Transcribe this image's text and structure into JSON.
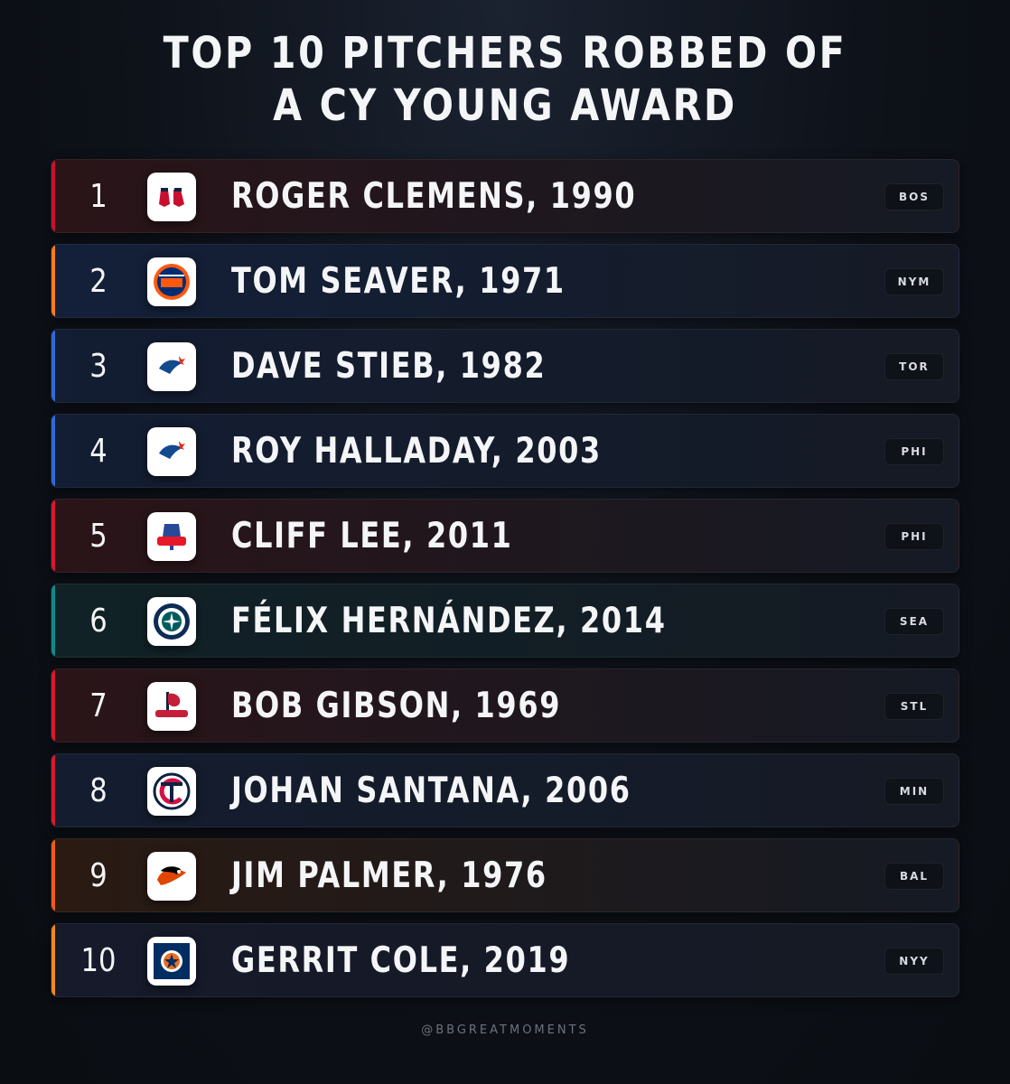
{
  "title": {
    "line1": "TOP 10 PITCHERS ROBBED OF",
    "line2": "A CY YOUNG AWARD"
  },
  "rows": [
    {
      "rank": "1",
      "name": "ROGER CLEMENS, 1990",
      "team": "BOS",
      "logo": "red-sox-logo",
      "accent": "#c8102e",
      "bg": "#2a1418"
    },
    {
      "rank": "2",
      "name": "TOM SEAVER, 1971",
      "team": "NYM",
      "logo": "mets-logo",
      "accent": "#ff7a1a",
      "bg": "#14203a"
    },
    {
      "rank": "3",
      "name": "DAVE STIEB, 1982",
      "team": "TOR",
      "logo": "blue-jays-logo",
      "accent": "#2f6bd6",
      "bg": "#131d33"
    },
    {
      "rank": "4",
      "name": "ROY HALLADAY, 2003",
      "team": "PHI",
      "logo": "blue-jays-logo",
      "accent": "#2f6bd6",
      "bg": "#131d33"
    },
    {
      "rank": "5",
      "name": "CLIFF LEE, 2011",
      "team": "PHI",
      "logo": "phillies-logo",
      "accent": "#d7192f",
      "bg": "#2a1418"
    },
    {
      "rank": "6",
      "name": "FÉLIX HERNÁNDEZ, 2014",
      "team": "SEA",
      "logo": "mariners-logo",
      "accent": "#0e8a8a",
      "bg": "#102226"
    },
    {
      "rank": "7",
      "name": "BOB GIBSON, 1969",
      "team": "STL",
      "logo": "cardinals-logo",
      "accent": "#d7192f",
      "bg": "#2a1418"
    },
    {
      "rank": "8",
      "name": "JOHAN SANTANA, 2006",
      "team": "MIN",
      "logo": "twins-logo",
      "accent": "#d7192f",
      "bg": "#141d30"
    },
    {
      "rank": "9",
      "name": "JIM PALMER, 1976",
      "team": "BAL",
      "logo": "orioles-logo",
      "accent": "#f05a1a",
      "bg": "#2a1a12"
    },
    {
      "rank": "10",
      "name": "GERRIT COLE, 2019",
      "team": "NYY",
      "logo": "astros-logo",
      "accent": "#f08a1a",
      "bg": "#161a2a"
    }
  ],
  "footer": "@BBGREATMOMENTS"
}
